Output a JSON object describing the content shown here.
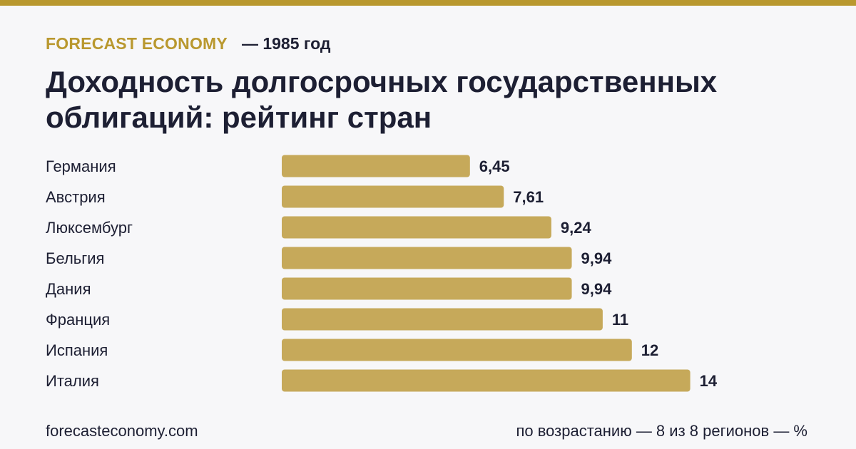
{
  "brand": "FORECAST ECONOMY",
  "year_label": "— 1985 год",
  "title": "Доходность долгосрочных государственных облигаций: рейтинг стран",
  "footer": {
    "site": "forecasteconomy.com",
    "note": "по возрастанию — 8 из 8 регионов — %"
  },
  "colors": {
    "accent": "#b9982f",
    "bar": "#c6a95a",
    "text": "#1d1f33",
    "background": "#f7f7f9"
  },
  "chart_data": {
    "type": "bar",
    "orientation": "horizontal",
    "categories": [
      "Германия",
      "Австрия",
      "Люксембург",
      "Бельгия",
      "Дания",
      "Франция",
      "Испания",
      "Италия"
    ],
    "values": [
      6.45,
      7.61,
      9.24,
      9.94,
      9.94,
      11,
      12,
      14
    ],
    "value_labels": [
      "6,45",
      "7,61",
      "9,24",
      "9,94",
      "9,94",
      "11",
      "12",
      "14"
    ],
    "title": "Доходность долгосрочных государственных облигаций: рейтинг стран",
    "grid": false,
    "legend": "none"
  }
}
